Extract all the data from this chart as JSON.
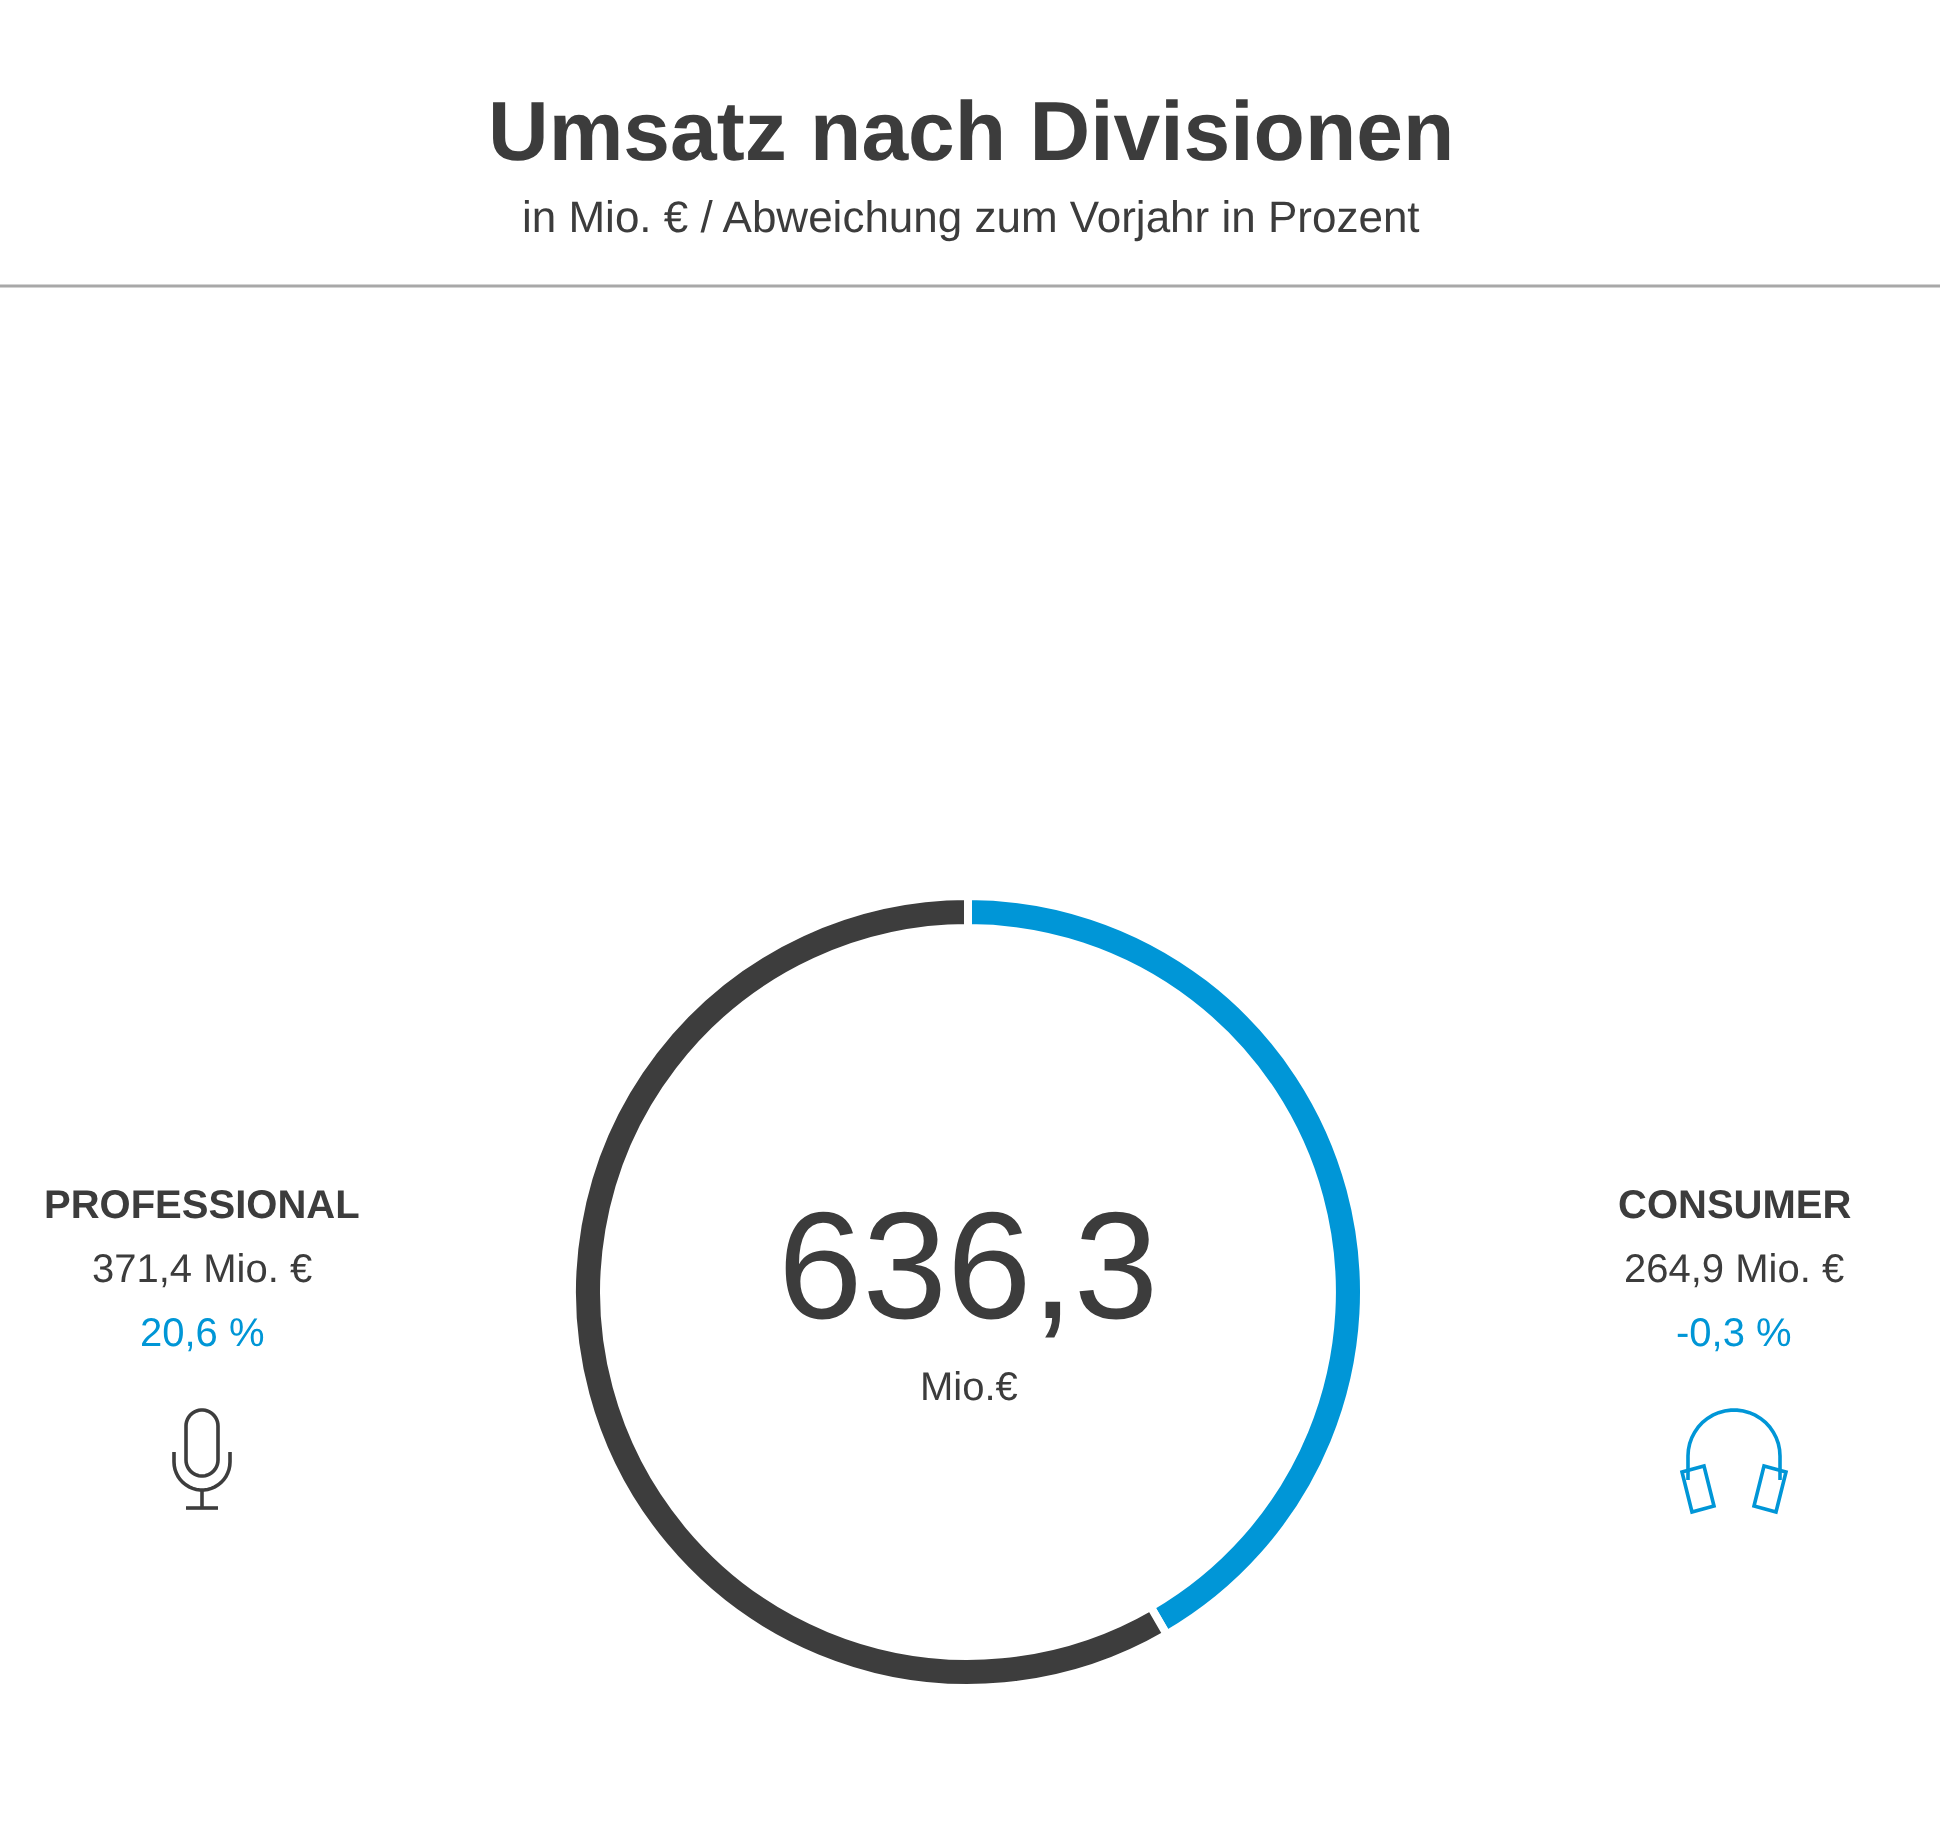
{
  "chart_data": {
    "type": "donut",
    "title": "Umsatz nach Divisionen",
    "subtitle": "in Mio. € / Abweichung zum Vorjahr in Prozent",
    "categories": [
      "CONSUMER",
      "PROFESSIONAL"
    ],
    "values": [
      264.9,
      371.4
    ],
    "colors": [
      "#0096d7",
      "#3d3d3d"
    ],
    "value_labels": [
      "264,9 Mio. €",
      "371,4 Mio. €"
    ],
    "annotations": [
      "636,3",
      "Mio.€",
      "-0,3 %",
      "20,6 %"
    ]
  }
}
